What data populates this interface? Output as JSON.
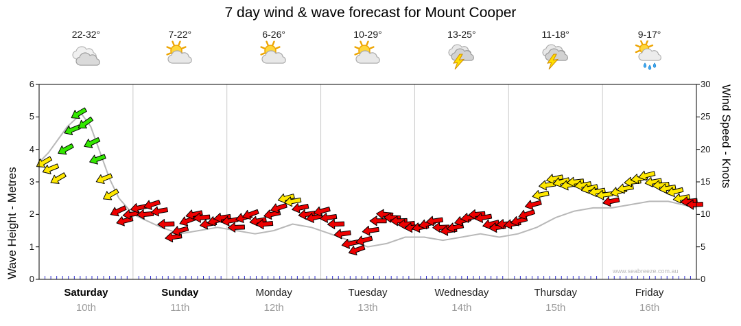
{
  "title": "7 day wind & wave forecast for Mount Cooper",
  "watermark": "www.seabreeze.com.au",
  "axes": {
    "left_label": "Wave Height - Metres",
    "right_label": "Wind Speed - Knots"
  },
  "colors": {
    "arrow_green": "#33e800",
    "arrow_yellow": "#ffe800",
    "arrow_red": "#ee0000",
    "arrow_outline": "#000000",
    "wave_line": "#b8b8b8",
    "grid_line": "#c9c9c9",
    "axis": "#000000",
    "minor_tick_blue": "#2a2ad0",
    "date_grey": "#9a9a9a",
    "watermark_grey": "#b9b9b9"
  },
  "chart_data": {
    "type": "line",
    "title": "7 day wind & wave forecast for Mount Cooper",
    "x_axis": {
      "range_days": [
        0,
        7
      ],
      "days": [
        {
          "name": "Saturday",
          "date": "10th",
          "temperature": "22-32°",
          "icon": "cloudy",
          "weekend": true
        },
        {
          "name": "Sunday",
          "date": "11th",
          "temperature": "7-22°",
          "icon": "partly-cloudy",
          "weekend": true
        },
        {
          "name": "Monday",
          "date": "12th",
          "temperature": "6-26°",
          "icon": "partly-cloudy",
          "weekend": false
        },
        {
          "name": "Tuesday",
          "date": "13th",
          "temperature": "10-29°",
          "icon": "partly-cloudy",
          "weekend": false
        },
        {
          "name": "Wednesday",
          "date": "14th",
          "temperature": "13-25°",
          "icon": "thunderstorm",
          "weekend": false
        },
        {
          "name": "Thursday",
          "date": "15th",
          "temperature": "11-18°",
          "icon": "thunderstorm",
          "weekend": false
        },
        {
          "name": "Friday",
          "date": "16th",
          "temperature": "9-17°",
          "icon": "rain-showers",
          "weekend": false
        }
      ]
    },
    "y_left": {
      "label": "Wave Height - Metres",
      "range": [
        0,
        6
      ],
      "ticks": [
        0,
        1,
        2,
        3,
        4,
        5,
        6
      ]
    },
    "y_right": {
      "label": "Wind Speed - Knots",
      "range": [
        0,
        30
      ],
      "ticks": [
        0,
        5,
        10,
        15,
        20,
        25,
        30
      ]
    },
    "series": [
      {
        "name": "Wave Height",
        "unit": "m",
        "style": "grey-line",
        "points": [
          [
            0,
            3.6
          ],
          [
            0.1,
            3.9
          ],
          [
            0.2,
            4.3
          ],
          [
            0.3,
            4.7
          ],
          [
            0.45,
            5.1
          ],
          [
            0.55,
            4.7
          ],
          [
            0.65,
            3.9
          ],
          [
            0.75,
            3.1
          ],
          [
            0.85,
            2.5
          ],
          [
            1.0,
            2.0
          ],
          [
            1.15,
            1.8
          ],
          [
            1.3,
            1.6
          ],
          [
            1.5,
            1.4
          ],
          [
            1.7,
            1.5
          ],
          [
            1.9,
            1.6
          ],
          [
            2.1,
            1.5
          ],
          [
            2.3,
            1.4
          ],
          [
            2.5,
            1.5
          ],
          [
            2.7,
            1.7
          ],
          [
            2.9,
            1.6
          ],
          [
            3.1,
            1.4
          ],
          [
            3.3,
            1.2
          ],
          [
            3.5,
            1.0
          ],
          [
            3.7,
            1.1
          ],
          [
            3.9,
            1.3
          ],
          [
            4.1,
            1.3
          ],
          [
            4.3,
            1.2
          ],
          [
            4.5,
            1.3
          ],
          [
            4.7,
            1.4
          ],
          [
            4.9,
            1.3
          ],
          [
            5.1,
            1.4
          ],
          [
            5.3,
            1.6
          ],
          [
            5.5,
            1.9
          ],
          [
            5.7,
            2.1
          ],
          [
            5.9,
            2.2
          ],
          [
            6.1,
            2.2
          ],
          [
            6.3,
            2.3
          ],
          [
            6.5,
            2.4
          ],
          [
            6.7,
            2.4
          ],
          [
            6.85,
            2.3
          ],
          [
            7,
            2.2
          ]
        ]
      },
      {
        "name": "Wind",
        "unit": "knots",
        "style": "direction-arrows",
        "color_key": {
          "g": "green",
          "y": "yellow",
          "r": "red"
        },
        "arrows": [
          [
            0.05,
            18,
            "y",
            150
          ],
          [
            0.12,
            17,
            "y",
            158
          ],
          [
            0.2,
            15.5,
            "y",
            150
          ],
          [
            0.28,
            20,
            "g",
            152
          ],
          [
            0.35,
            23,
            "g",
            158
          ],
          [
            0.42,
            25.5,
            "g",
            150
          ],
          [
            0.49,
            24,
            "g",
            145
          ],
          [
            0.56,
            21,
            "g",
            155
          ],
          [
            0.62,
            18.5,
            "g",
            160
          ],
          [
            0.69,
            15.5,
            "y",
            158
          ],
          [
            0.76,
            13,
            "y",
            150
          ],
          [
            0.84,
            10.5,
            "r",
            155
          ],
          [
            0.91,
            9,
            "r",
            165
          ],
          [
            0.98,
            10,
            "r",
            172
          ],
          [
            1.06,
            11,
            "r",
            168
          ],
          [
            1.13,
            10,
            "r",
            175
          ],
          [
            1.2,
            11.5,
            "r",
            162
          ],
          [
            1.28,
            10.5,
            "r",
            170
          ],
          [
            1.35,
            8.5,
            "r",
            178
          ],
          [
            1.43,
            6.5,
            "r",
            172
          ],
          [
            1.5,
            7.5,
            "r",
            165
          ],
          [
            1.58,
            9,
            "r",
            160
          ],
          [
            1.65,
            10,
            "r",
            168
          ],
          [
            1.73,
            9.5,
            "r",
            175
          ],
          [
            1.8,
            8.5,
            "r",
            170
          ],
          [
            1.88,
            9,
            "r",
            165
          ],
          [
            1.95,
            9.5,
            "r",
            172
          ],
          [
            2.03,
            9,
            "r",
            170
          ],
          [
            2.1,
            8,
            "r",
            178
          ],
          [
            2.18,
            9.5,
            "r",
            165
          ],
          [
            2.25,
            10,
            "r",
            160
          ],
          [
            2.33,
            9,
            "r",
            170
          ],
          [
            2.4,
            8.5,
            "r",
            175
          ],
          [
            2.48,
            10,
            "r",
            168
          ],
          [
            2.55,
            11,
            "r",
            162
          ],
          [
            2.63,
            12.5,
            "y",
            165
          ],
          [
            2.7,
            12,
            "y",
            170
          ],
          [
            2.78,
            11,
            "r",
            168
          ],
          [
            2.85,
            10,
            "r",
            172
          ],
          [
            2.93,
            9.5,
            "r",
            168
          ],
          [
            3.01,
            10.5,
            "r",
            165
          ],
          [
            3.08,
            9.5,
            "r",
            172
          ],
          [
            3.16,
            8.5,
            "r",
            178
          ],
          [
            3.23,
            7,
            "r",
            172
          ],
          [
            3.31,
            5.5,
            "r",
            168
          ],
          [
            3.38,
            4.5,
            "r",
            160
          ],
          [
            3.46,
            6,
            "r",
            165
          ],
          [
            3.53,
            7.5,
            "r",
            172
          ],
          [
            3.61,
            9,
            "r",
            180
          ],
          [
            3.68,
            10,
            "r",
            185
          ],
          [
            3.76,
            9.5,
            "r",
            182
          ],
          [
            3.83,
            9,
            "r",
            178
          ],
          [
            3.91,
            8.5,
            "r",
            175
          ],
          [
            3.98,
            8,
            "r",
            172
          ],
          [
            4.06,
            8,
            "r",
            170
          ],
          [
            4.13,
            8.5,
            "r",
            165
          ],
          [
            4.21,
            9,
            "r",
            172
          ],
          [
            4.28,
            8,
            "r",
            178
          ],
          [
            4.36,
            7.5,
            "r",
            172
          ],
          [
            4.43,
            8,
            "r",
            168
          ],
          [
            4.51,
            9,
            "r",
            165
          ],
          [
            4.58,
            9.5,
            "r",
            170
          ],
          [
            4.66,
            10,
            "r",
            175
          ],
          [
            4.73,
            9.5,
            "r",
            170
          ],
          [
            4.81,
            8.5,
            "r",
            166
          ],
          [
            4.88,
            8,
            "r",
            172
          ],
          [
            4.96,
            8.5,
            "r",
            176
          ],
          [
            5.04,
            8.5,
            "r",
            170
          ],
          [
            5.11,
            9,
            "r",
            166
          ],
          [
            5.19,
            10,
            "r",
            162
          ],
          [
            5.26,
            11.5,
            "r",
            165
          ],
          [
            5.34,
            13,
            "y",
            168
          ],
          [
            5.41,
            14.5,
            "y",
            172
          ],
          [
            5.49,
            15.5,
            "y",
            168
          ],
          [
            5.56,
            15,
            "y",
            164
          ],
          [
            5.64,
            14.5,
            "y",
            170
          ],
          [
            5.71,
            15,
            "y",
            174
          ],
          [
            5.79,
            14.5,
            "y",
            170
          ],
          [
            5.86,
            14,
            "y",
            166
          ],
          [
            5.94,
            13.5,
            "y",
            170
          ],
          [
            6.02,
            13,
            "y",
            172
          ],
          [
            6.09,
            12,
            "r",
            168
          ],
          [
            6.17,
            13.5,
            "y",
            165
          ],
          [
            6.24,
            14,
            "y",
            170
          ],
          [
            6.32,
            15,
            "y",
            174
          ],
          [
            6.39,
            15.5,
            "y",
            170
          ],
          [
            6.47,
            16,
            "y",
            166
          ],
          [
            6.54,
            15,
            "y",
            170
          ],
          [
            6.62,
            14.5,
            "y",
            174
          ],
          [
            6.69,
            14,
            "y",
            170
          ],
          [
            6.77,
            13.5,
            "y",
            166
          ],
          [
            6.84,
            12.5,
            "y",
            170
          ],
          [
            6.92,
            12,
            "r",
            174
          ],
          [
            6.98,
            11.5,
            "r",
            178
          ]
        ]
      }
    ]
  }
}
